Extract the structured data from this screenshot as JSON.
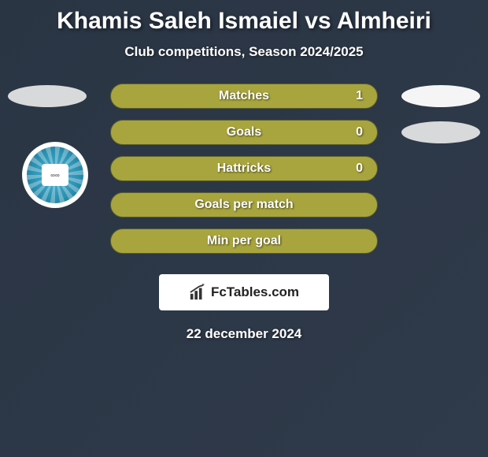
{
  "title": "Khamis Saleh Ismaiel vs Almheiri",
  "subtitle": "Club competitions, Season 2024/2025",
  "date": "22 december 2024",
  "branding": {
    "text": "FcTables.com"
  },
  "colors": {
    "pill_bg": "#a8a53e",
    "pill_border": "#5a5f2d",
    "ellipse_gray": "#d8d9da",
    "ellipse_white": "#f5f5f5",
    "background_start": "#2a3544",
    "background_end": "#2f3a4a",
    "text": "#ffffff"
  },
  "stats": [
    {
      "label": "Matches",
      "value": "1",
      "left_ellipse": "#d8d9da",
      "right_ellipse": "#f5f5f5"
    },
    {
      "label": "Goals",
      "value": "0",
      "left_ellipse": null,
      "right_ellipse": "#d8d9da"
    },
    {
      "label": "Hattricks",
      "value": "0",
      "left_ellipse": null,
      "right_ellipse": null
    },
    {
      "label": "Goals per match",
      "value": "",
      "left_ellipse": null,
      "right_ellipse": null
    },
    {
      "label": "Min per goal",
      "value": "",
      "left_ellipse": null,
      "right_ellipse": null
    }
  ]
}
